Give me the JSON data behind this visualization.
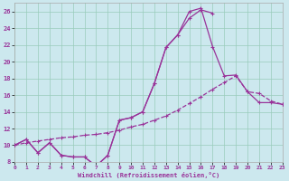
{
  "xlabel": "Windchill (Refroidissement éolien,°C)",
  "background_color": "#cce8ee",
  "line_color": "#993399",
  "grid_color": "#99ccbb",
  "xlim": [
    0,
    23
  ],
  "ylim": [
    8,
    27
  ],
  "xticks": [
    0,
    1,
    2,
    3,
    4,
    5,
    6,
    7,
    8,
    9,
    10,
    11,
    12,
    13,
    14,
    15,
    16,
    17,
    18,
    19,
    20,
    21,
    22,
    23
  ],
  "yticks": [
    8,
    10,
    12,
    14,
    16,
    18,
    20,
    22,
    24,
    26
  ],
  "curve1_x": [
    0,
    1,
    2,
    3,
    4,
    5,
    6,
    7,
    8,
    9,
    10,
    11,
    12,
    13,
    14,
    15,
    16,
    17
  ],
  "curve1_y": [
    10.0,
    10.7,
    9.1,
    10.3,
    8.8,
    8.6,
    8.6,
    7.5,
    8.8,
    13.0,
    13.3,
    14.0,
    17.4,
    21.7,
    23.2,
    25.2,
    26.2,
    25.8
  ],
  "curve2_x": [
    0,
    1,
    2,
    3,
    4,
    5,
    6,
    7,
    8,
    9,
    10,
    11,
    12,
    13,
    14,
    15,
    16,
    17,
    18,
    19,
    20,
    21,
    22,
    23
  ],
  "curve2_y": [
    10.0,
    10.7,
    9.1,
    10.3,
    8.8,
    8.6,
    8.6,
    7.5,
    8.8,
    13.0,
    13.3,
    14.0,
    17.4,
    21.7,
    23.2,
    26.0,
    26.4,
    21.8,
    18.3,
    18.4,
    16.4,
    15.1,
    15.1,
    14.9
  ],
  "curve3_x": [
    0,
    1,
    2,
    3,
    4,
    5,
    6,
    7,
    8,
    9,
    10,
    11,
    12,
    13,
    14,
    15,
    16,
    17,
    18,
    19,
    20,
    21,
    22,
    23
  ],
  "curve3_y": [
    10.0,
    10.3,
    10.5,
    10.7,
    10.9,
    11.0,
    11.2,
    11.3,
    11.5,
    11.8,
    12.2,
    12.5,
    13.0,
    13.5,
    14.2,
    15.0,
    15.8,
    16.7,
    17.5,
    18.3,
    16.4,
    16.2,
    15.3,
    14.9
  ]
}
